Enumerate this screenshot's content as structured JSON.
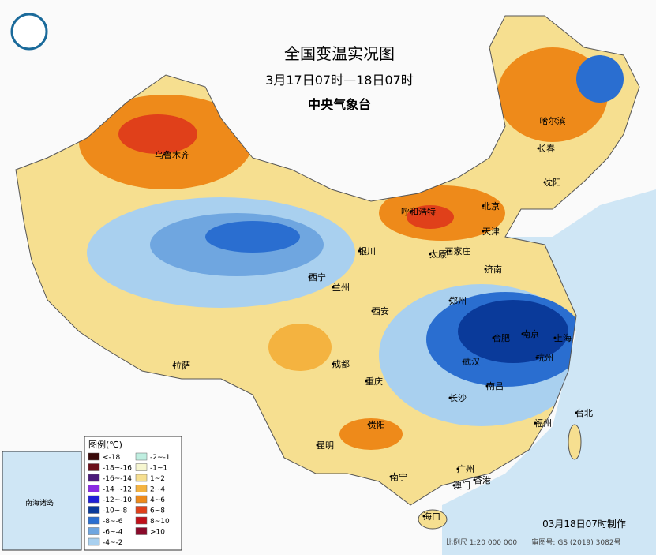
{
  "header": {
    "title": "全国变温实况图",
    "subtitle": "3月17日07时—18日07时",
    "issuer": "中央气象台"
  },
  "legend": {
    "title": "图例(℃)",
    "items": [
      {
        "label": "<-18",
        "color": "#3a0a0a"
      },
      {
        "label": "-18~-16",
        "color": "#6b0f1a"
      },
      {
        "label": "-16~-14",
        "color": "#4b1a7a"
      },
      {
        "label": "-14~-12",
        "color": "#8a2be2"
      },
      {
        "label": "-12~-10",
        "color": "#1f1fd6"
      },
      {
        "label": "-10~-8",
        "color": "#0a3a9a"
      },
      {
        "label": "-8~-6",
        "color": "#2a6ed0"
      },
      {
        "label": "-6~-4",
        "color": "#6fa6e0"
      },
      {
        "label": "-4~-2",
        "color": "#a9d0ef"
      },
      {
        "label": "-2~-1",
        "color": "#bfeee0"
      },
      {
        "label": "-1~1",
        "color": "#f6f6d0"
      },
      {
        "label": "1~2",
        "color": "#f6df90"
      },
      {
        "label": "2~4",
        "color": "#f4b340"
      },
      {
        "label": "4~6",
        "color": "#ee8a1a"
      },
      {
        "label": "6~8",
        "color": "#e0401a"
      },
      {
        "label": "8~10",
        "color": "#c0101a"
      },
      {
        "label": ">10",
        "color": "#8a0a2a"
      }
    ]
  },
  "cities": [
    "乌鲁木齐",
    "哈尔滨",
    "长春",
    "沈阳",
    "北京",
    "呼和浩特",
    "天津",
    "石家庄",
    "太原",
    "银川",
    "济南",
    "西宁",
    "兰州",
    "郑州",
    "西安",
    "南京",
    "合肥",
    "上海",
    "杭州",
    "武汉",
    "成都",
    "拉萨",
    "重庆",
    "南昌",
    "长沙",
    "福州",
    "台北",
    "贵阳",
    "昆明",
    "广州",
    "南宁",
    "香港",
    "澳门",
    "海口"
  ],
  "inset": {
    "label": "南海诸岛"
  },
  "footer": {
    "made": "03月18日07时制作",
    "scale": "比例尺 1:20 000 000",
    "approval": "审图号: GS (2019) 3082号"
  }
}
